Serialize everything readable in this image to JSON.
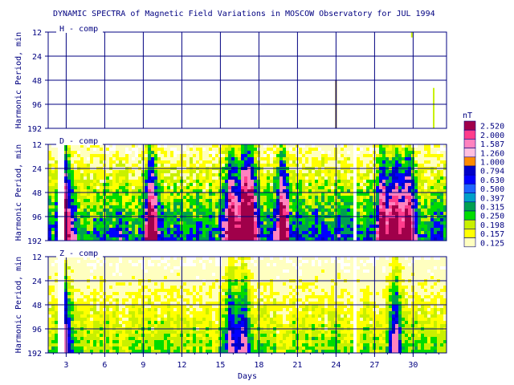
{
  "chart_data": {
    "type": "heatmap",
    "title": "DYNAMIC SPECTRA of Magnetic Field Variations in MOSCOW Observatory for JUL 1994",
    "xlabel": "Days",
    "ylabel": "Harmonic Period, min",
    "xlim": [
      1.6,
      32.6
    ],
    "x_ticks": [
      "3",
      "6",
      "9",
      "12",
      "15",
      "18",
      "21",
      "24",
      "27",
      "30"
    ],
    "x_tick_values": [
      3,
      6,
      9,
      12,
      15,
      18,
      21,
      24,
      27,
      30
    ],
    "y_scale": "log",
    "y_ticks": [
      "12",
      "24",
      "48",
      "96",
      "192"
    ],
    "y_tick_values": [
      12,
      24,
      48,
      96,
      192
    ],
    "panels": [
      {
        "name": "H - comp",
        "activity": "very low",
        "features": [
          {
            "day": 24.0,
            "period_from": 48,
            "period_to": 192,
            "level": "0.125"
          },
          {
            "day": 29.9,
            "period_from": 12,
            "period_to": 14,
            "level": "0.198"
          },
          {
            "day": 31.6,
            "period_from": 60,
            "period_to": 192,
            "level": "0.198"
          }
        ]
      },
      {
        "name": "D - comp",
        "activity": "high",
        "gaps": [
          [
            2.3,
            2.6
          ],
          [
            25.2,
            25.5
          ]
        ],
        "disturbed_days": [
          2.8,
          9.5,
          15.7,
          16.7,
          17.3,
          19.7,
          27.5,
          28.5,
          29.5
        ],
        "peak_level": "2.520"
      },
      {
        "name": "Z - comp",
        "activity": "moderate",
        "gaps": [
          [
            2.3,
            2.6
          ],
          [
            25.2,
            25.5
          ]
        ],
        "disturbed_days": [
          2.8,
          15.7,
          16.7,
          28.5
        ],
        "peak_level": "1.587"
      }
    ],
    "colorbar": {
      "unit": "nT",
      "levels": [
        "2.520",
        "2.000",
        "1.587",
        "1.260",
        "1.000",
        "0.794",
        "0.630",
        "0.500",
        "0.397",
        "0.315",
        "0.250",
        "0.198",
        "0.157",
        "0.125"
      ],
      "colors": [
        "#a0004a",
        "#ff3c8c",
        "#ff82bf",
        "#ffbfdf",
        "#ff8c00",
        "#0000c8",
        "#0000ff",
        "#1e64ff",
        "#00a0c8",
        "#00a050",
        "#00dc00",
        "#c8f000",
        "#ffff00",
        "#ffffc0"
      ]
    },
    "grid": true,
    "legend": "right"
  }
}
